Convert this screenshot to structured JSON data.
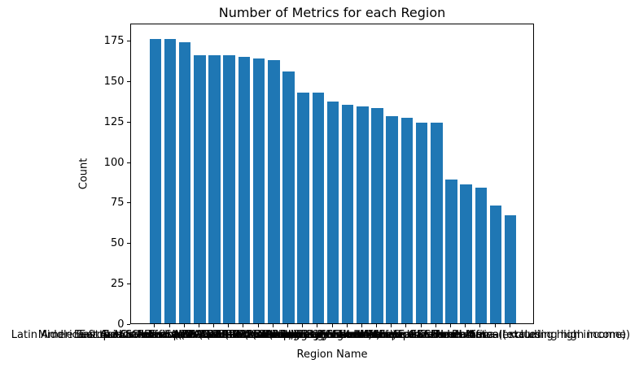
{
  "chart_data": {
    "type": "bar",
    "title": "Number of Metrics for each Region",
    "xlabel": "Region Name",
    "ylabel": "Count",
    "categories": [
      "Latin America & the Caribbean (IDA & IBRD countries)",
      "Middle East & North Africa (IDA & IBRD countries)",
      "East Asia & Pacific (IDA & IBRD countries)",
      "Europe & Central Asia (IDA & IBRD countries)",
      "Sub-Saharan Africa (IDA & IBRD countries)",
      "South Asia (IDA & IBRD)",
      "Latin America & Caribbean (excluding high income)",
      "East Asia & Pacific (excluding high income)",
      "Europe & Central Asia (excluding high income)",
      "Latin America & Caribbean",
      "East Asia & Pacific",
      "Europe & Central Asia",
      "Middle East & North Africa",
      "Sub-Saharan Africa",
      "South Asia",
      "North America",
      "Arab World",
      "Central Europe and the Baltics",
      "European Union",
      "Euro area",
      "OECD members",
      "Small states",
      "Caribbean small states",
      "Middle East & North Africa (excluding high income)",
      "Sub-Saharan Africa (excluding high income)"
    ],
    "values": [
      176,
      176,
      174,
      166,
      166,
      166,
      165,
      164,
      163,
      156,
      143,
      143,
      137,
      135,
      134,
      133,
      128,
      127,
      124,
      124,
      89,
      86,
      84,
      73,
      67
    ],
    "yticks": [
      0,
      25,
      50,
      75,
      100,
      125,
      150,
      175
    ],
    "ylim": [
      0,
      186
    ],
    "xlim_units": 27.28,
    "x_offset_units": 1.64,
    "bar_width_units": 0.8,
    "grid": false,
    "legend": "none",
    "bar_color": "#1f77b4",
    "axis_color": "#000000",
    "text_color": "#000000"
  }
}
